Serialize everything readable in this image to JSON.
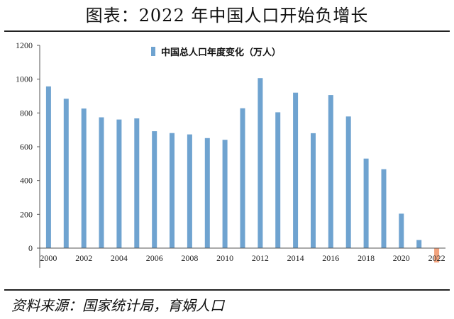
{
  "header": {
    "title": "图表：2022 年中国人口开始负增长"
  },
  "footer": {
    "source": "资料来源：国家统计局，育娲人口"
  },
  "colors": {
    "positive": "#6fa3d0",
    "negative": "#f2a37e",
    "axis": "#555555"
  },
  "chart_data": {
    "type": "bar",
    "title": "",
    "xlabel": "",
    "ylabel": "",
    "legend": {
      "entries": [
        "中国总人口年度变化（万人）"
      ],
      "placement": "top-center"
    },
    "categories": [
      "2000",
      "2001",
      "2002",
      "2003",
      "2004",
      "2005",
      "2006",
      "2007",
      "2008",
      "2009",
      "2010",
      "2011",
      "2012",
      "2013",
      "2014",
      "2015",
      "2016",
      "2017",
      "2018",
      "2019",
      "2020",
      "2021",
      "2022"
    ],
    "x_tick_labels": [
      "2000",
      "2002",
      "2004",
      "2006",
      "2008",
      "2010",
      "2012",
      "2014",
      "2016",
      "2018",
      "2020",
      "2022"
    ],
    "series": [
      {
        "name": "中国总人口年度变化（万人）",
        "values": [
          957,
          884,
          826,
          774,
          761,
          768,
          692,
          681,
          673,
          651,
          641,
          828,
          1006,
          804,
          920,
          680,
          906,
          779,
          530,
          467,
          204,
          48,
          -85
        ]
      }
    ],
    "ylim": [
      -100,
      1200
    ],
    "y_ticks": [
      0,
      200,
      400,
      600,
      800,
      1000,
      1200
    ],
    "grid": false
  }
}
